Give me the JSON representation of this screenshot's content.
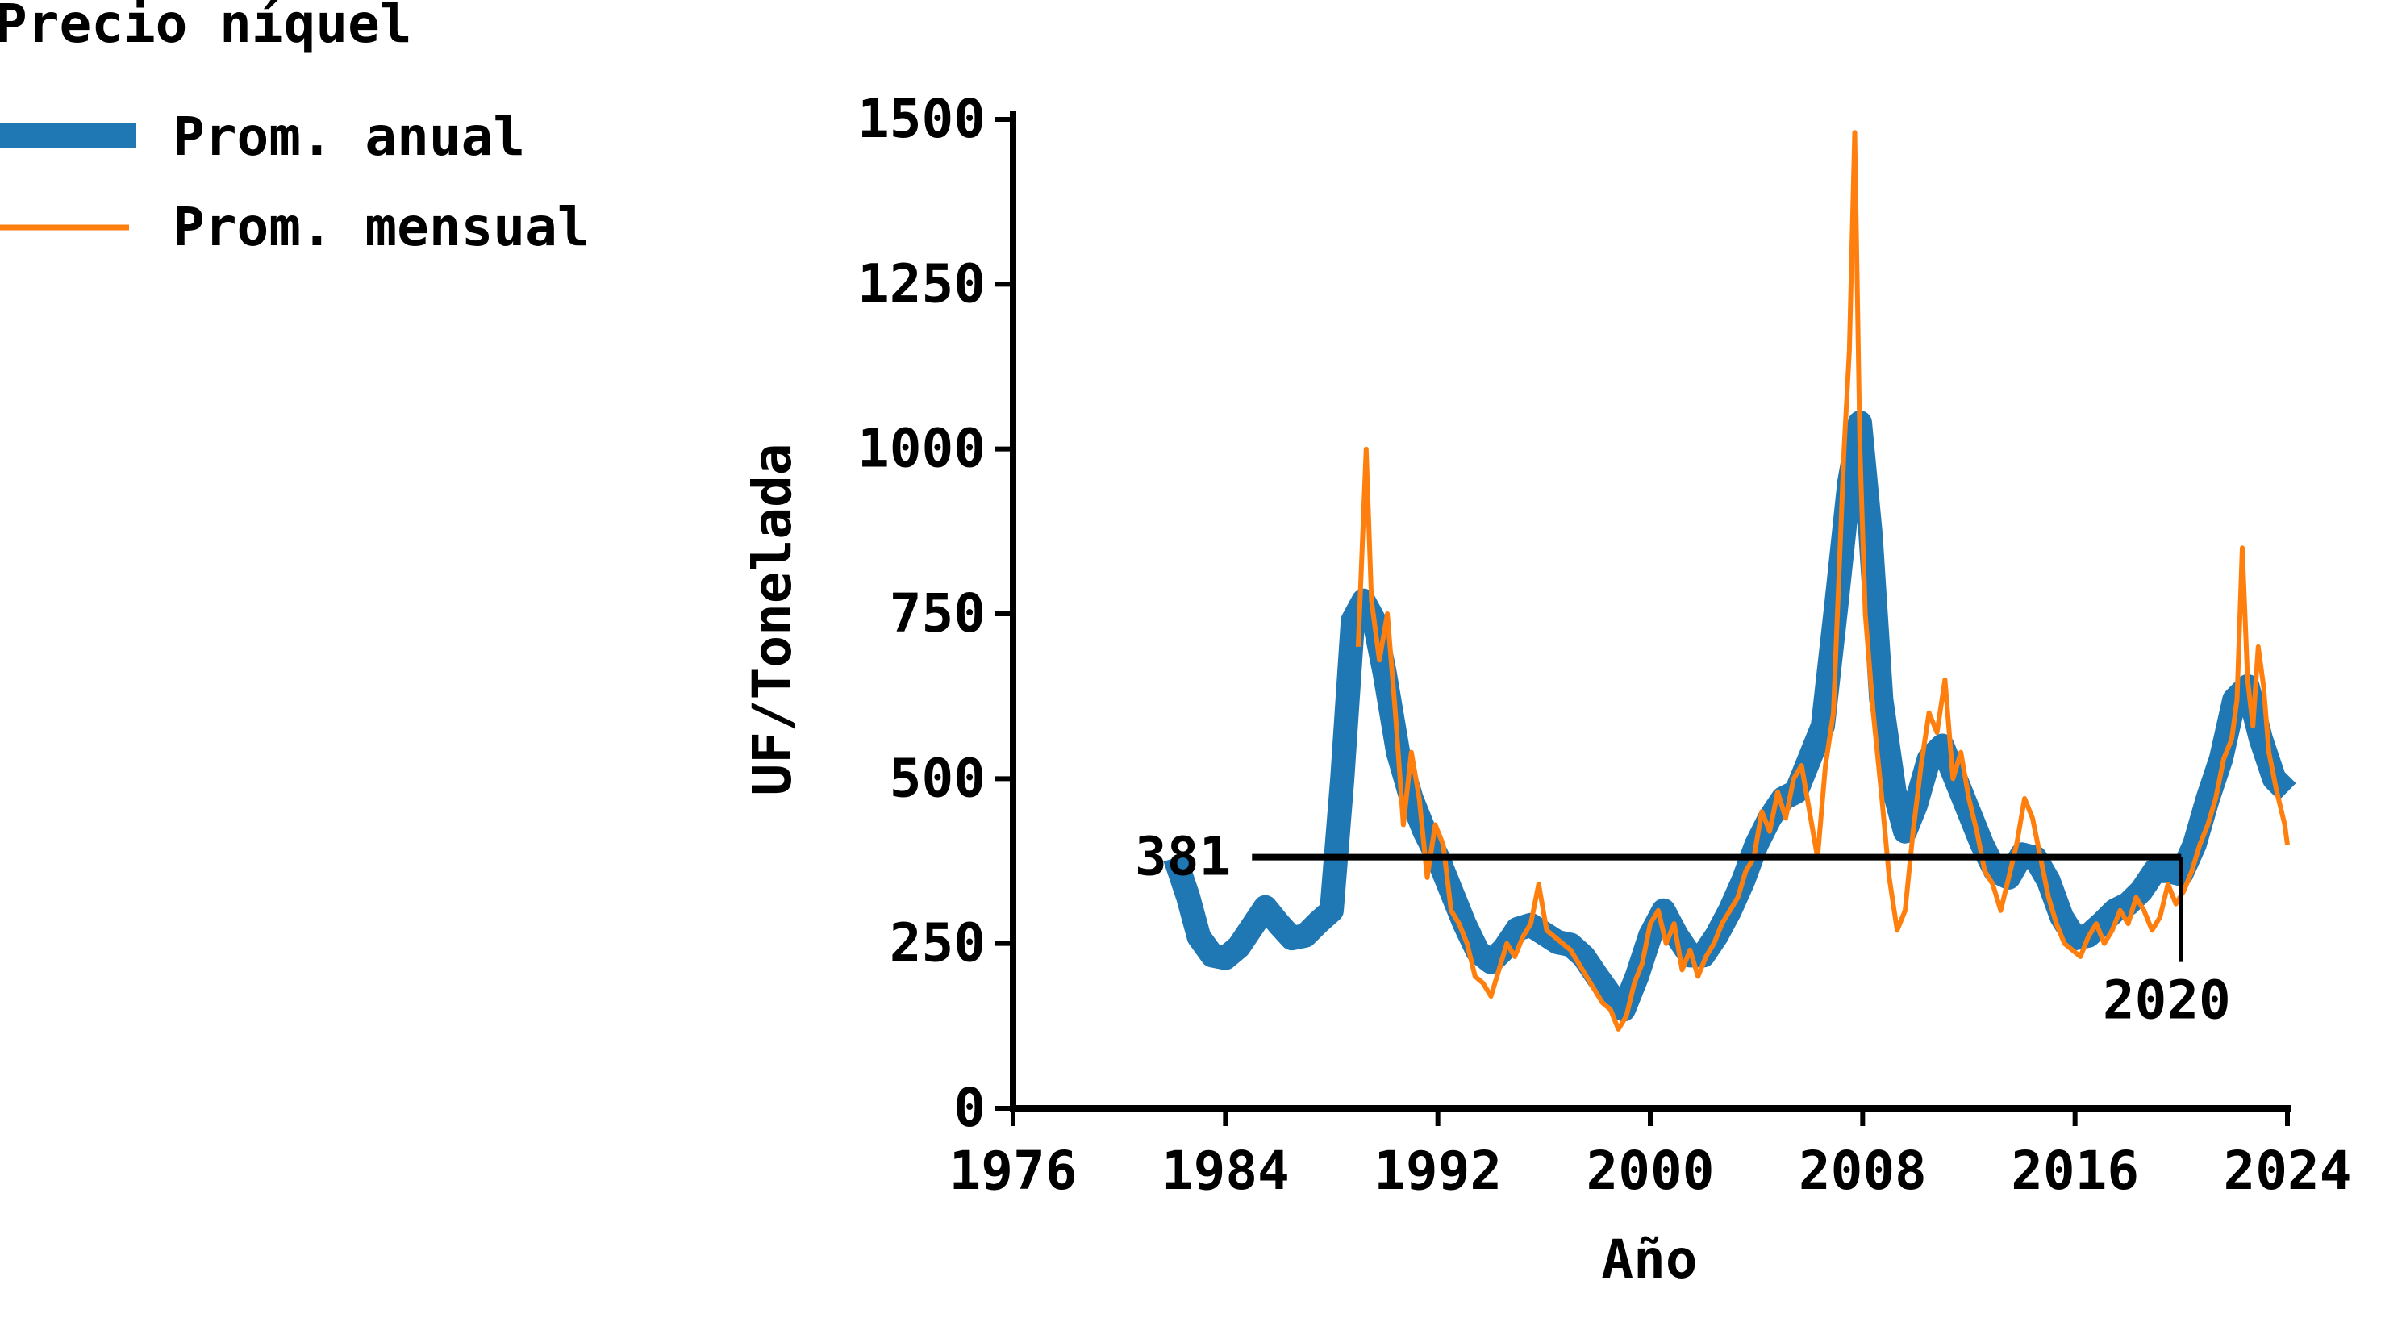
{
  "chart_data": {
    "type": "line",
    "legend_title": "Precio níquel",
    "legend_position": "top-left",
    "xlabel": "Año",
    "ylabel": "UF/Tonelada",
    "xlim": [
      1976,
      2024
    ],
    "ylim": [
      0,
      1500
    ],
    "x_ticks": [
      "1976",
      "1984",
      "1992",
      "2000",
      "2008",
      "2016",
      "2024"
    ],
    "y_ticks": [
      "0",
      "250",
      "500",
      "750",
      "1000",
      "1250",
      "1500"
    ],
    "grid": false,
    "reference_line": {
      "y": 381,
      "label": "381",
      "x_start": 1985,
      "x_end": 2020
    },
    "vertical_marker": {
      "x": 2020,
      "label": "2020"
    },
    "series": [
      {
        "name": "Prom. anual",
        "color": "#1f77b4",
        "points": [
          [
            1982.1,
            380
          ],
          [
            1982.6,
            320
          ],
          [
            1983.0,
            260
          ],
          [
            1983.5,
            232
          ],
          [
            1984.0,
            228
          ],
          [
            1984.5,
            245
          ],
          [
            1985.0,
            275
          ],
          [
            1985.5,
            305
          ],
          [
            1986.0,
            280
          ],
          [
            1986.5,
            258
          ],
          [
            1987.0,
            262
          ],
          [
            1987.5,
            282
          ],
          [
            1988.0,
            300
          ],
          [
            1988.4,
            500
          ],
          [
            1988.8,
            740
          ],
          [
            1989.2,
            770
          ],
          [
            1989.6,
            740
          ],
          [
            1990.0,
            660
          ],
          [
            1990.5,
            540
          ],
          [
            1991.0,
            470
          ],
          [
            1991.5,
            420
          ],
          [
            1992.0,
            380
          ],
          [
            1992.5,
            330
          ],
          [
            1993.0,
            280
          ],
          [
            1993.5,
            238
          ],
          [
            1994.0,
            222
          ],
          [
            1994.5,
            242
          ],
          [
            1995.0,
            272
          ],
          [
            1995.5,
            278
          ],
          [
            1996.0,
            265
          ],
          [
            1996.5,
            252
          ],
          [
            1997.0,
            248
          ],
          [
            1997.5,
            230
          ],
          [
            1998.0,
            200
          ],
          [
            1998.5,
            172
          ],
          [
            1999.0,
            150
          ],
          [
            1999.5,
            200
          ],
          [
            2000.0,
            262
          ],
          [
            2000.5,
            300
          ],
          [
            2001.0,
            262
          ],
          [
            2001.5,
            232
          ],
          [
            2002.0,
            232
          ],
          [
            2002.5,
            262
          ],
          [
            2003.0,
            300
          ],
          [
            2003.5,
            345
          ],
          [
            2004.0,
            400
          ],
          [
            2004.5,
            440
          ],
          [
            2005.0,
            470
          ],
          [
            2005.5,
            480
          ],
          [
            2006.0,
            530
          ],
          [
            2006.5,
            580
          ],
          [
            2007.0,
            760
          ],
          [
            2007.5,
            950
          ],
          [
            2007.9,
            1040
          ],
          [
            2008.3,
            870
          ],
          [
            2008.7,
            620
          ],
          [
            2009.2,
            480
          ],
          [
            2009.6,
            420
          ],
          [
            2010.0,
            460
          ],
          [
            2010.5,
            530
          ],
          [
            2011.0,
            550
          ],
          [
            2011.5,
            500
          ],
          [
            2012.0,
            450
          ],
          [
            2012.5,
            400
          ],
          [
            2013.0,
            360
          ],
          [
            2013.5,
            350
          ],
          [
            2014.0,
            385
          ],
          [
            2014.5,
            380
          ],
          [
            2015.0,
            345
          ],
          [
            2015.5,
            290
          ],
          [
            2016.0,
            258
          ],
          [
            2016.5,
            262
          ],
          [
            2017.0,
            280
          ],
          [
            2017.5,
            300
          ],
          [
            2018.0,
            310
          ],
          [
            2018.5,
            330
          ],
          [
            2019.0,
            360
          ],
          [
            2019.5,
            360
          ],
          [
            2020.0,
            355
          ],
          [
            2020.5,
            400
          ],
          [
            2021.0,
            470
          ],
          [
            2021.5,
            530
          ],
          [
            2022.0,
            620
          ],
          [
            2022.5,
            640
          ],
          [
            2023.0,
            560
          ],
          [
            2023.5,
            500
          ],
          [
            2024.0,
            480
          ]
        ]
      },
      {
        "name": "Prom. mensual",
        "color": "#ff7f0e",
        "points": [
          [
            1989.0,
            700
          ],
          [
            1989.3,
            1000
          ],
          [
            1989.5,
            770
          ],
          [
            1989.8,
            680
          ],
          [
            1990.1,
            750
          ],
          [
            1990.4,
            600
          ],
          [
            1990.7,
            430
          ],
          [
            1991.0,
            540
          ],
          [
            1991.3,
            470
          ],
          [
            1991.6,
            350
          ],
          [
            1991.9,
            430
          ],
          [
            1992.2,
            400
          ],
          [
            1992.5,
            300
          ],
          [
            1992.8,
            280
          ],
          [
            1993.1,
            250
          ],
          [
            1993.4,
            200
          ],
          [
            1993.7,
            190
          ],
          [
            1994.0,
            170
          ],
          [
            1994.3,
            210
          ],
          [
            1994.6,
            250
          ],
          [
            1994.9,
            230
          ],
          [
            1995.2,
            260
          ],
          [
            1995.5,
            280
          ],
          [
            1995.8,
            340
          ],
          [
            1996.1,
            270
          ],
          [
            1996.4,
            260
          ],
          [
            1996.7,
            250
          ],
          [
            1997.0,
            240
          ],
          [
            1997.3,
            220
          ],
          [
            1997.6,
            200
          ],
          [
            1997.9,
            180
          ],
          [
            1998.2,
            160
          ],
          [
            1998.5,
            150
          ],
          [
            1998.8,
            120
          ],
          [
            1999.1,
            140
          ],
          [
            1999.4,
            190
          ],
          [
            1999.7,
            220
          ],
          [
            2000.0,
            280
          ],
          [
            2000.3,
            300
          ],
          [
            2000.6,
            250
          ],
          [
            2000.9,
            280
          ],
          [
            2001.2,
            210
          ],
          [
            2001.5,
            240
          ],
          [
            2001.8,
            200
          ],
          [
            2002.1,
            230
          ],
          [
            2002.4,
            250
          ],
          [
            2002.7,
            280
          ],
          [
            2003.0,
            300
          ],
          [
            2003.3,
            320
          ],
          [
            2003.6,
            360
          ],
          [
            2003.9,
            380
          ],
          [
            2004.2,
            450
          ],
          [
            2004.5,
            420
          ],
          [
            2004.8,
            480
          ],
          [
            2005.1,
            440
          ],
          [
            2005.4,
            500
          ],
          [
            2005.7,
            520
          ],
          [
            2006.0,
            450
          ],
          [
            2006.3,
            380
          ],
          [
            2006.6,
            520
          ],
          [
            2006.9,
            600
          ],
          [
            2007.1,
            800
          ],
          [
            2007.3,
            1000
          ],
          [
            2007.5,
            1150
          ],
          [
            2007.7,
            1480
          ],
          [
            2007.9,
            1000
          ],
          [
            2008.1,
            750
          ],
          [
            2008.4,
            600
          ],
          [
            2008.7,
            480
          ],
          [
            2009.0,
            350
          ],
          [
            2009.3,
            270
          ],
          [
            2009.6,
            300
          ],
          [
            2009.9,
            420
          ],
          [
            2010.2,
            520
          ],
          [
            2010.5,
            600
          ],
          [
            2010.8,
            570
          ],
          [
            2011.1,
            650
          ],
          [
            2011.4,
            500
          ],
          [
            2011.7,
            540
          ],
          [
            2012.0,
            470
          ],
          [
            2012.3,
            420
          ],
          [
            2012.6,
            360
          ],
          [
            2012.9,
            340
          ],
          [
            2013.2,
            300
          ],
          [
            2013.5,
            350
          ],
          [
            2013.8,
            400
          ],
          [
            2014.1,
            470
          ],
          [
            2014.4,
            440
          ],
          [
            2014.7,
            380
          ],
          [
            2015.0,
            320
          ],
          [
            2015.3,
            280
          ],
          [
            2015.6,
            250
          ],
          [
            2015.9,
            240
          ],
          [
            2016.2,
            230
          ],
          [
            2016.5,
            260
          ],
          [
            2016.8,
            280
          ],
          [
            2017.1,
            250
          ],
          [
            2017.4,
            270
          ],
          [
            2017.7,
            300
          ],
          [
            2018.0,
            280
          ],
          [
            2018.3,
            320
          ],
          [
            2018.6,
            300
          ],
          [
            2018.9,
            270
          ],
          [
            2019.2,
            290
          ],
          [
            2019.5,
            340
          ],
          [
            2019.8,
            310
          ],
          [
            2020.1,
            330
          ],
          [
            2020.4,
            360
          ],
          [
            2020.7,
            400
          ],
          [
            2021.0,
            430
          ],
          [
            2021.3,
            470
          ],
          [
            2021.6,
            530
          ],
          [
            2021.9,
            560
          ],
          [
            2022.1,
            620
          ],
          [
            2022.3,
            850
          ],
          [
            2022.5,
            650
          ],
          [
            2022.7,
            580
          ],
          [
            2022.9,
            700
          ],
          [
            2023.1,
            640
          ],
          [
            2023.3,
            540
          ],
          [
            2023.6,
            480
          ],
          [
            2023.9,
            430
          ],
          [
            2024.0,
            400
          ]
        ]
      }
    ]
  }
}
